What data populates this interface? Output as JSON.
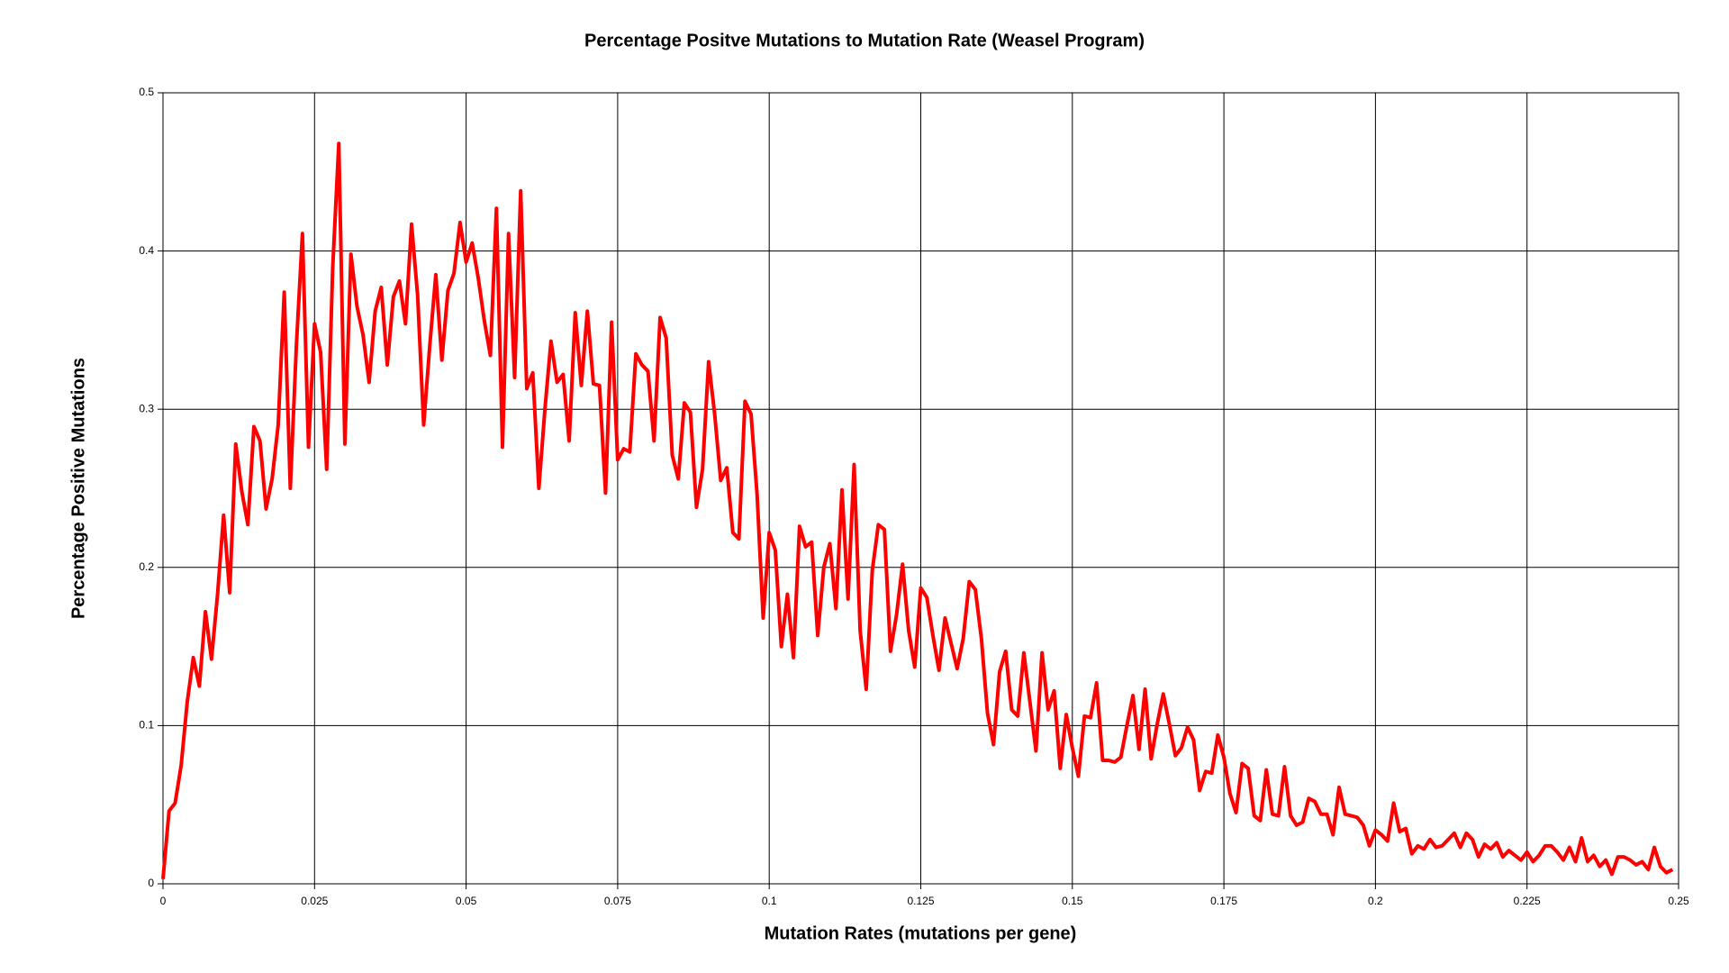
{
  "chart_data": {
    "type": "line",
    "title": "Percentage Positve Mutations to Mutation Rate (Weasel Program)",
    "xlabel": "Mutation Rates (mutations per gene)",
    "ylabel": "Percentage Positive Mutations",
    "color": "#ff0000",
    "grid": true,
    "xlim": [
      0,
      0.25
    ],
    "ylim": [
      0,
      0.5
    ],
    "xticks": [
      0,
      0.025,
      0.05,
      0.075,
      0.1,
      0.125,
      0.15,
      0.175,
      0.2,
      0.225,
      0.25
    ],
    "yticks": [
      0,
      0.1,
      0.2,
      0.3,
      0.4,
      0.5
    ],
    "x": [
      0,
      0.001,
      0.002,
      0.003,
      0.004,
      0.005,
      0.006,
      0.007,
      0.008,
      0.009,
      0.01,
      0.011,
      0.012,
      0.013,
      0.014,
      0.015,
      0.016,
      0.017,
      0.018,
      0.019,
      0.02,
      0.021,
      0.022,
      0.023,
      0.024,
      0.025,
      0.026,
      0.027,
      0.028,
      0.029,
      0.03,
      0.031,
      0.032,
      0.033,
      0.034,
      0.035,
      0.036,
      0.037,
      0.038,
      0.039,
      0.04,
      0.041,
      0.042,
      0.043,
      0.044,
      0.045,
      0.046,
      0.047,
      0.048,
      0.049,
      0.05,
      0.051,
      0.052,
      0.053,
      0.054,
      0.055,
      0.056,
      0.057,
      0.058,
      0.059,
      0.06,
      0.061,
      0.062,
      0.063,
      0.064,
      0.065,
      0.066,
      0.067,
      0.068,
      0.069,
      0.07,
      0.071,
      0.072,
      0.073,
      0.074,
      0.075,
      0.076,
      0.077,
      0.078,
      0.079,
      0.08,
      0.081,
      0.082,
      0.083,
      0.084,
      0.085,
      0.086,
      0.087,
      0.088,
      0.089,
      0.09,
      0.091,
      0.092,
      0.093,
      0.094,
      0.095,
      0.096,
      0.097,
      0.098,
      0.099,
      0.1,
      0.101,
      0.102,
      0.103,
      0.104,
      0.105,
      0.106,
      0.107,
      0.108,
      0.109,
      0.11,
      0.111,
      0.112,
      0.113,
      0.114,
      0.115,
      0.116,
      0.117,
      0.118,
      0.119,
      0.12,
      0.121,
      0.122,
      0.123,
      0.124,
      0.125,
      0.126,
      0.127,
      0.128,
      0.129,
      0.13,
      0.131,
      0.132,
      0.133,
      0.134,
      0.135,
      0.136,
      0.137,
      0.138,
      0.139,
      0.14,
      0.141,
      0.142,
      0.143,
      0.144,
      0.145,
      0.146,
      0.147,
      0.148,
      0.149,
      0.15,
      0.151,
      0.152,
      0.153,
      0.154,
      0.155,
      0.156,
      0.157,
      0.158,
      0.159,
      0.16,
      0.161,
      0.162,
      0.163,
      0.164,
      0.165,
      0.166,
      0.167,
      0.168,
      0.169,
      0.17,
      0.171,
      0.172,
      0.173,
      0.174,
      0.175,
      0.176,
      0.177,
      0.178,
      0.179,
      0.18,
      0.181,
      0.182,
      0.183,
      0.184,
      0.185,
      0.186,
      0.187,
      0.188,
      0.189,
      0.19,
      0.191,
      0.192,
      0.193,
      0.194,
      0.195,
      0.196,
      0.197,
      0.198,
      0.199,
      0.2,
      0.201,
      0.202,
      0.203,
      0.204,
      0.205,
      0.206,
      0.207,
      0.208,
      0.209,
      0.21,
      0.211,
      0.212,
      0.213,
      0.214,
      0.215,
      0.216,
      0.217,
      0.218,
      0.219,
      0.22,
      0.221,
      0.222,
      0.223,
      0.224,
      0.225,
      0.226,
      0.227,
      0.228,
      0.229,
      0.23,
      0.231,
      0.232,
      0.233,
      0.234,
      0.235,
      0.236,
      0.237,
      0.238,
      0.239,
      0.24,
      0.241,
      0.242,
      0.243,
      0.244,
      0.245,
      0.246,
      0.247,
      0.248,
      0.249
    ],
    "values": [
      0.003,
      0.046,
      0.051,
      0.075,
      0.115,
      0.143,
      0.125,
      0.172,
      0.142,
      0.183,
      0.233,
      0.184,
      0.278,
      0.248,
      0.227,
      0.289,
      0.28,
      0.237,
      0.256,
      0.29,
      0.374,
      0.25,
      0.34,
      0.411,
      0.276,
      0.354,
      0.336,
      0.262,
      0.39,
      0.468,
      0.278,
      0.398,
      0.365,
      0.347,
      0.317,
      0.362,
      0.377,
      0.328,
      0.371,
      0.381,
      0.354,
      0.417,
      0.372,
      0.29,
      0.34,
      0.385,
      0.331,
      0.375,
      0.386,
      0.418,
      0.393,
      0.405,
      0.383,
      0.356,
      0.334,
      0.427,
      0.276,
      0.411,
      0.32,
      0.438,
      0.313,
      0.323,
      0.25,
      0.3,
      0.343,
      0.317,
      0.322,
      0.28,
      0.361,
      0.315,
      0.362,
      0.316,
      0.315,
      0.247,
      0.355,
      0.268,
      0.275,
      0.273,
      0.335,
      0.328,
      0.324,
      0.28,
      0.358,
      0.345,
      0.271,
      0.256,
      0.304,
      0.298,
      0.238,
      0.262,
      0.33,
      0.297,
      0.255,
      0.263,
      0.222,
      0.218,
      0.305,
      0.297,
      0.246,
      0.168,
      0.222,
      0.211,
      0.15,
      0.183,
      0.143,
      0.226,
      0.213,
      0.216,
      0.157,
      0.2,
      0.215,
      0.174,
      0.249,
      0.18,
      0.265,
      0.16,
      0.123,
      0.198,
      0.227,
      0.224,
      0.147,
      0.17,
      0.202,
      0.16,
      0.137,
      0.187,
      0.181,
      0.157,
      0.135,
      0.168,
      0.152,
      0.136,
      0.155,
      0.191,
      0.186,
      0.155,
      0.108,
      0.088,
      0.134,
      0.147,
      0.11,
      0.106,
      0.146,
      0.115,
      0.084,
      0.146,
      0.11,
      0.122,
      0.073,
      0.107,
      0.086,
      0.068,
      0.106,
      0.105,
      0.127,
      0.078,
      0.078,
      0.077,
      0.08,
      0.1,
      0.119,
      0.085,
      0.123,
      0.079,
      0.101,
      0.12,
      0.101,
      0.081,
      0.086,
      0.099,
      0.091,
      0.059,
      0.071,
      0.07,
      0.094,
      0.08,
      0.057,
      0.045,
      0.076,
      0.073,
      0.043,
      0.04,
      0.072,
      0.044,
      0.043,
      0.074,
      0.043,
      0.037,
      0.039,
      0.054,
      0.052,
      0.044,
      0.044,
      0.031,
      0.061,
      0.044,
      0.043,
      0.042,
      0.037,
      0.024,
      0.034,
      0.031,
      0.027,
      0.051,
      0.033,
      0.035,
      0.019,
      0.024,
      0.022,
      0.028,
      0.023,
      0.024,
      0.028,
      0.032,
      0.023,
      0.032,
      0.028,
      0.017,
      0.025,
      0.022,
      0.026,
      0.017,
      0.021,
      0.018,
      0.015,
      0.02,
      0.014,
      0.018,
      0.024,
      0.024,
      0.02,
      0.015,
      0.023,
      0.014,
      0.029,
      0.014,
      0.018,
      0.011,
      0.015,
      0.006,
      0.017,
      0.017,
      0.015,
      0.012,
      0.014,
      0.009,
      0.023,
      0.011,
      0.007,
      0.009
    ]
  }
}
